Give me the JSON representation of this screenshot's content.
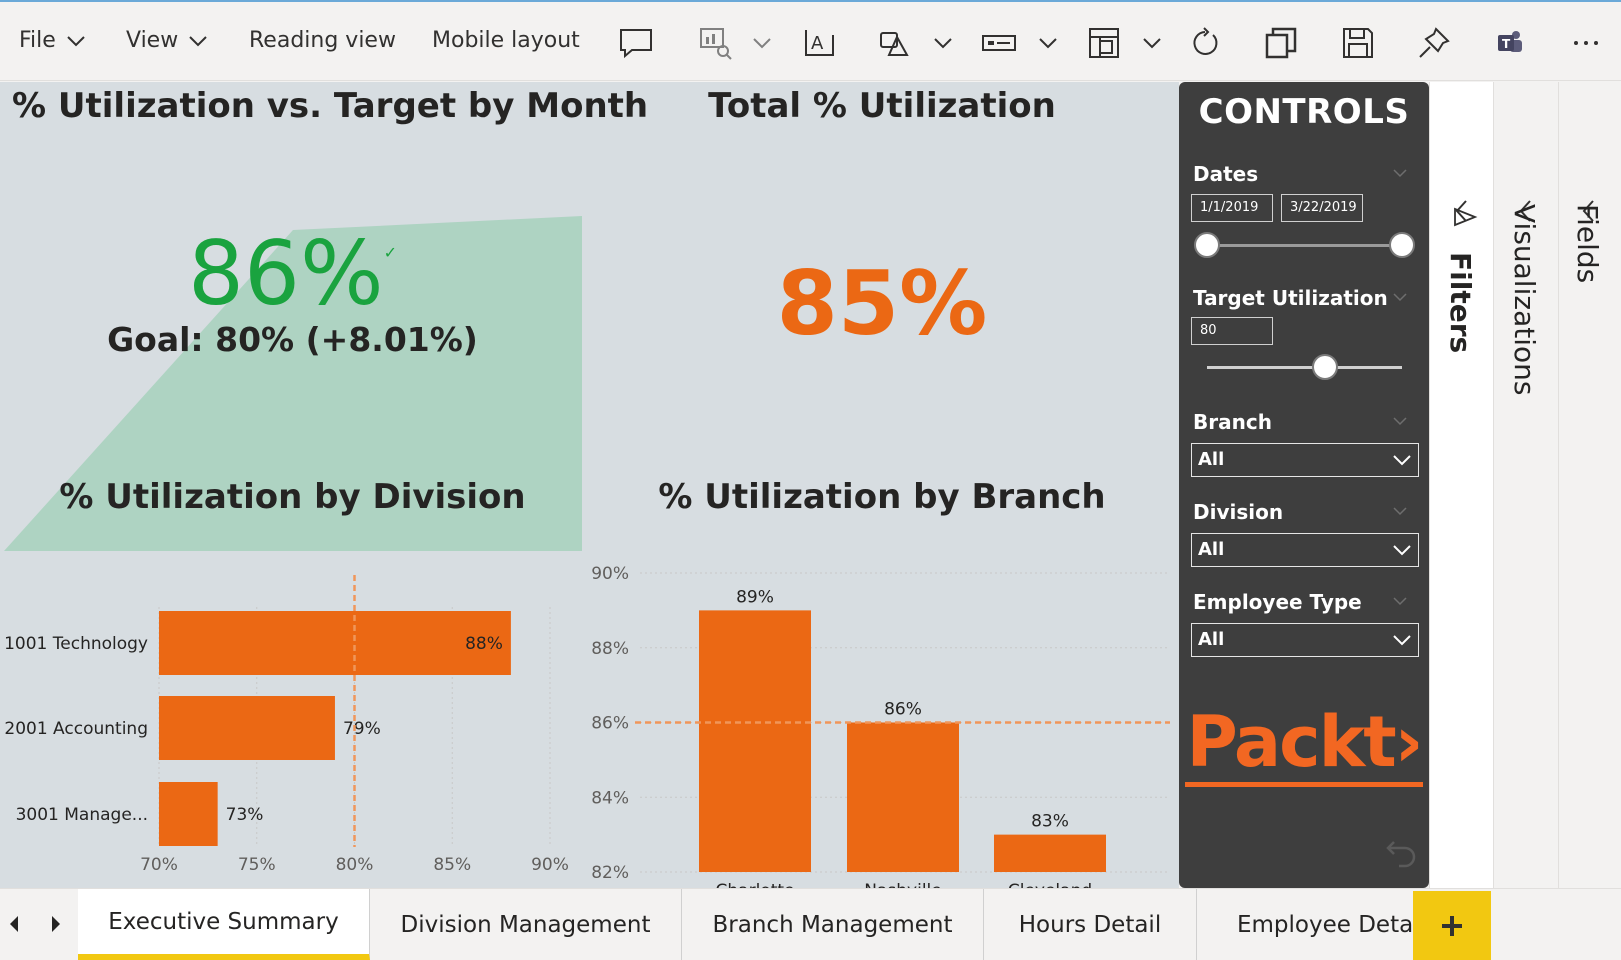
{
  "toolbar": {
    "file_label": "File",
    "view_label": "View",
    "reading_view_label": "Reading view",
    "mobile_layout_label": "Mobile layout",
    "icons": [
      "comment-icon",
      "visual-interactions-icon",
      "textbox-icon",
      "shapes-icon",
      "buttons-icon",
      "page-layout-icon",
      "refresh-icon",
      "duplicate-icon",
      "save-icon",
      "pin-icon",
      "teams-icon",
      "more-icon"
    ]
  },
  "kpi": {
    "title": "% Utilization vs. Target by Month",
    "value": "86%",
    "goal_text": "Goal: 80%",
    "delta_text": "(+8.01%)",
    "value_color": "#1aa33f",
    "area_color": "#aed3c2"
  },
  "card": {
    "title": "Total % Utilization",
    "value": "85%",
    "value_color": "#eb6814"
  },
  "controls": {
    "title": "CONTROLS",
    "dates_label": "Dates",
    "date_start": "1/1/2019",
    "date_end": "3/22/2019",
    "target_label": "Target Utilization",
    "target_value": "80",
    "branch_label": "Branch",
    "branch_value": "All",
    "division_label": "Division",
    "division_value": "All",
    "emptype_label": "Employee Type",
    "emptype_value": "All",
    "logo_text": "Packt›"
  },
  "panes": {
    "filters_label": "Filters",
    "visualizations_label": "Visualizations",
    "fields_label": "Fields"
  },
  "tabs": [
    {
      "label": "Executive Summary",
      "active": true
    },
    {
      "label": "Division Management",
      "active": false
    },
    {
      "label": "Branch Management",
      "active": false
    },
    {
      "label": "Hours Detail",
      "active": false
    },
    {
      "label": "Employee Details",
      "active": false
    }
  ],
  "chart_data": [
    {
      "type": "bar",
      "orientation": "horizontal",
      "title": "% Utilization by Division",
      "categories": [
        "1001 Technology",
        "2001 Accounting",
        "3001 Manage..."
      ],
      "values": [
        88,
        79,
        73
      ],
      "value_labels": [
        "88%",
        "79%",
        "73%"
      ],
      "xlim": [
        70,
        90
      ],
      "x_ticks": [
        "70%",
        "75%",
        "80%",
        "85%",
        "90%"
      ],
      "reference_line": 80,
      "color": "#eb6814"
    },
    {
      "type": "bar",
      "orientation": "vertical",
      "title": "% Utilization by Branch",
      "categories": [
        "Charlotte",
        "Nashville",
        "Cleveland"
      ],
      "values": [
        89,
        86,
        83
      ],
      "value_labels": [
        "89%",
        "86%",
        "83%"
      ],
      "ylim": [
        82,
        90
      ],
      "y_ticks": [
        "82%",
        "84%",
        "86%",
        "88%",
        "90%"
      ],
      "reference_line": 86,
      "color": "#eb6814"
    }
  ]
}
